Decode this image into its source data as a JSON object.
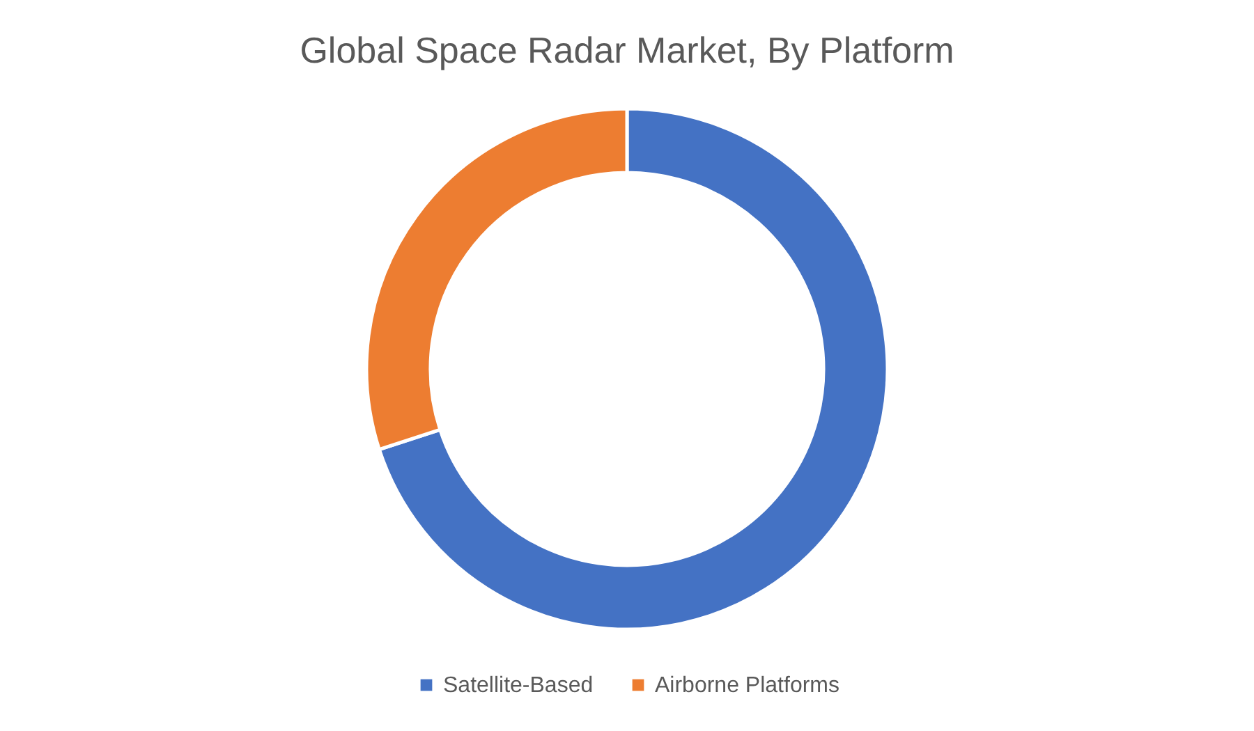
{
  "chart_data": {
    "type": "donut",
    "title": "Global Space Radar Market, By Platform",
    "categories": [
      "Satellite-Based",
      "Airborne Platforms"
    ],
    "values": [
      70,
      30
    ],
    "colors": [
      "#4472c4",
      "#ed7d31"
    ],
    "legend": "bottom"
  }
}
